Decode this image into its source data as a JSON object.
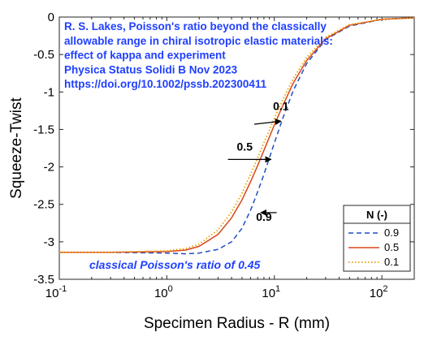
{
  "chart_data": {
    "type": "line",
    "xlabel": "Specimen Radius - R (mm)",
    "ylabel": "Squeeze-Twist",
    "xscale": "log",
    "xlim": [
      0.1,
      200
    ],
    "ylim": [
      -3.5,
      0
    ],
    "x_ticks": [
      {
        "value": 0.1,
        "base": "10",
        "exp": "-1"
      },
      {
        "value": 1,
        "base": "10",
        "exp": "0"
      },
      {
        "value": 10,
        "base": "10",
        "exp": "1"
      },
      {
        "value": 100,
        "base": "10",
        "exp": "2"
      }
    ],
    "y_ticks": [
      {
        "value": 0,
        "label": "0"
      },
      {
        "value": -0.5,
        "label": "-0.5"
      },
      {
        "value": -1,
        "label": "-1"
      },
      {
        "value": -1.5,
        "label": "-1.5"
      },
      {
        "value": -2,
        "label": "-2"
      },
      {
        "value": -2.5,
        "label": "-2.5"
      },
      {
        "value": -3,
        "label": "-3"
      },
      {
        "value": -3.5,
        "label": "-3.5"
      }
    ],
    "grid": false,
    "legend": {
      "title": "N (-)",
      "placement": "bottom-right"
    },
    "series": [
      {
        "name": "0.9",
        "color": "#1f4fbf",
        "style": "dashed",
        "x": [
          0.1,
          0.3,
          1,
          1.5,
          2,
          3,
          4,
          5,
          6,
          7,
          8,
          10,
          12,
          15,
          20,
          30,
          50,
          100,
          200
        ],
        "y": [
          -3.14,
          -3.14,
          -3.15,
          -3.16,
          -3.15,
          -3.1,
          -3.0,
          -2.82,
          -2.58,
          -2.33,
          -2.1,
          -1.68,
          -1.35,
          -0.98,
          -0.62,
          -0.3,
          -0.12,
          -0.03,
          -0.01
        ]
      },
      {
        "name": "0.5",
        "color": "#d9461a",
        "style": "solid",
        "x": [
          0.1,
          0.3,
          1,
          1.5,
          2,
          3,
          4,
          5,
          6,
          7,
          8,
          10,
          12,
          15,
          20,
          30,
          50,
          100,
          200
        ],
        "y": [
          -3.14,
          -3.14,
          -3.13,
          -3.11,
          -3.06,
          -2.9,
          -2.68,
          -2.44,
          -2.2,
          -1.98,
          -1.78,
          -1.44,
          -1.18,
          -0.88,
          -0.58,
          -0.29,
          -0.11,
          -0.03,
          -0.01
        ]
      },
      {
        "name": "0.1",
        "color": "#e6a100",
        "style": "dotted",
        "x": [
          0.1,
          0.3,
          1,
          1.5,
          2,
          3,
          4,
          5,
          6,
          7,
          8,
          10,
          12,
          15,
          20,
          30,
          50,
          100,
          200
        ],
        "y": [
          -3.14,
          -3.14,
          -3.12,
          -3.09,
          -3.03,
          -2.84,
          -2.6,
          -2.35,
          -2.1,
          -1.88,
          -1.68,
          -1.35,
          -1.1,
          -0.82,
          -0.54,
          -0.27,
          -0.1,
          -0.03,
          -0.01
        ]
      }
    ],
    "annotations": {
      "citation": [
        "R. S. Lakes, Poisson's ratio beyond the classically",
        "allowable range in chiral isotropic elastic materials:",
        "effect of kappa and experiment",
        "Physica Status Solidi B  Nov 2023",
        "https://doi.org/10.1002/pssb.202300411"
      ],
      "classical_note": "classical Poisson's ratio of 0.45",
      "curve_labels": [
        {
          "text": "0.1",
          "x": 11.5,
          "y": -1.24
        },
        {
          "text": "0.5",
          "x": 5.3,
          "y": -1.78
        },
        {
          "text": "0.9",
          "x": 8.0,
          "y": -2.72
        }
      ],
      "arrows": [
        {
          "from": [
            6.5,
            -1.43
          ],
          "to": [
            11.5,
            -1.39
          ]
        },
        {
          "from": [
            3.7,
            -1.9
          ],
          "to": [
            9.3,
            -1.9
          ]
        },
        {
          "from": [
            10.5,
            -2.61
          ],
          "to": [
            7.5,
            -2.61
          ]
        }
      ]
    }
  }
}
